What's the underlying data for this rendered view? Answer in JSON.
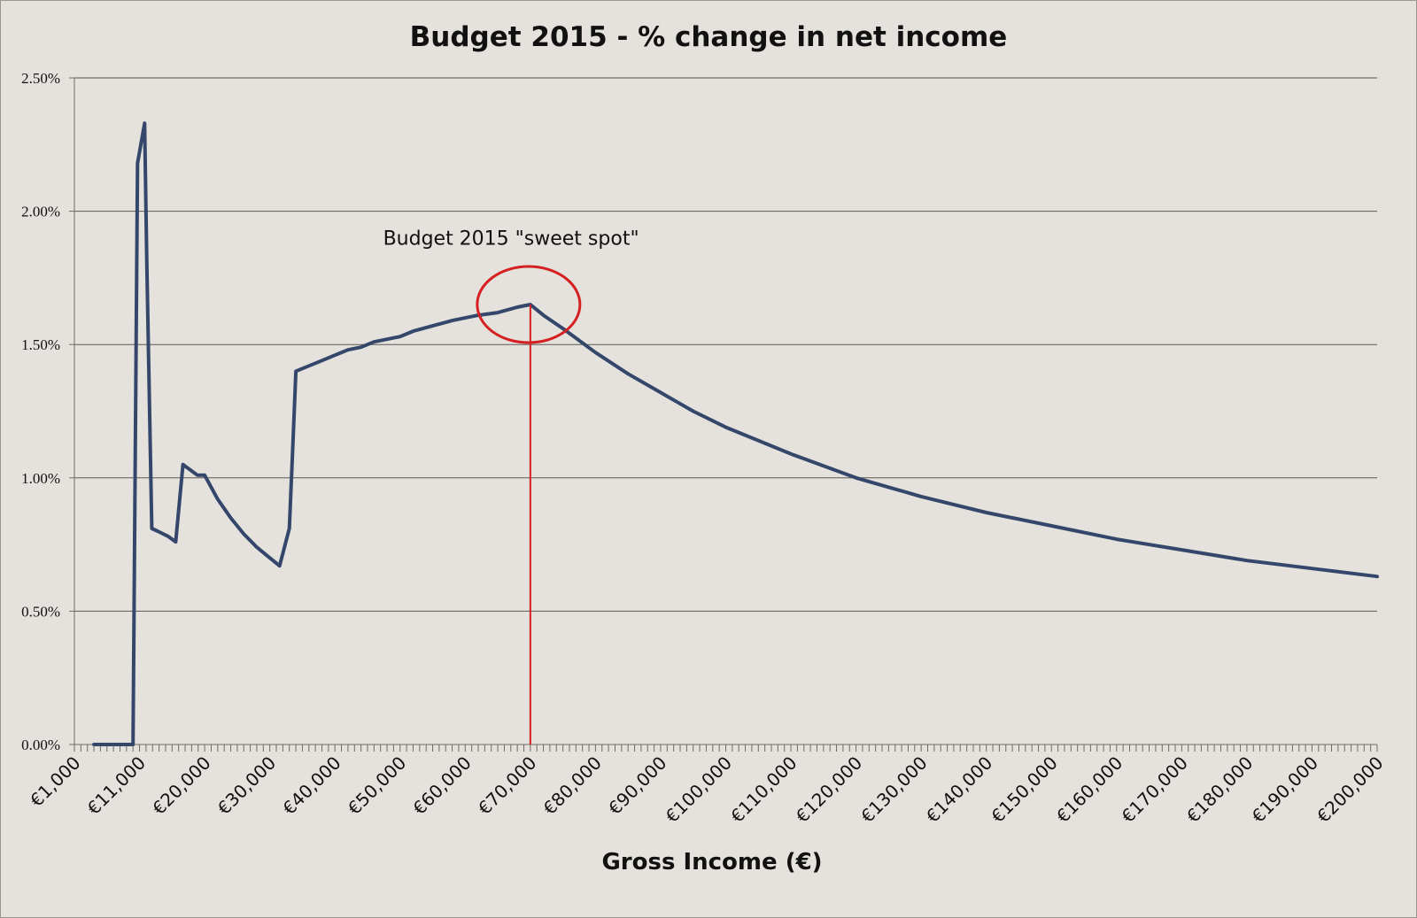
{
  "chart_data": {
    "type": "line",
    "title": "Budget 2015 - % change in net income",
    "xlabel": "Gross Income (€)",
    "ylabel": "",
    "ylim": [
      0,
      0.025
    ],
    "yticks": [
      0,
      0.005,
      0.01,
      0.015,
      0.02,
      0.025
    ],
    "ytick_labels": [
      "0.00%",
      "0.50%",
      "1.00%",
      "1.50%",
      "2.00%",
      "2.50%"
    ],
    "xlim": [
      1000,
      200000
    ],
    "xticks": [
      1000,
      11000,
      20000,
      30000,
      40000,
      50000,
      60000,
      70000,
      80000,
      90000,
      100000,
      110000,
      120000,
      130000,
      140000,
      150000,
      160000,
      170000,
      180000,
      190000,
      200000
    ],
    "xtick_labels": [
      "€1,000",
      "€11,000",
      "€20,000",
      "€30,000",
      "€40,000",
      "€50,000",
      "€60,000",
      "€70,000",
      "€80,000",
      "€90,000",
      "€100,000",
      "€110,000",
      "€120,000",
      "€130,000",
      "€140,000",
      "€150,000",
      "€160,000",
      "€170,000",
      "€180,000",
      "€190,000",
      "€200,000"
    ],
    "grid": true,
    "series": [
      {
        "name": "% change in net income",
        "color": "#34476b",
        "x": [
          4000,
          6000,
          8000,
          10000,
          10700,
          11700,
          12000,
          12700,
          13500,
          15000,
          16000,
          17000,
          17500,
          18000,
          19000,
          20000,
          22000,
          24000,
          26000,
          28000,
          30000,
          31500,
          33000,
          33500,
          34000,
          36000,
          38000,
          40000,
          42000,
          44000,
          46000,
          48000,
          50000,
          52000,
          55000,
          58000,
          60000,
          62000,
          65000,
          68000,
          70000,
          72000,
          75000,
          80000,
          85000,
          90000,
          95000,
          100000,
          110000,
          120000,
          130000,
          140000,
          150000,
          160000,
          170000,
          180000,
          190000,
          200000
        ],
        "y": [
          0,
          0,
          0,
          0,
          0.0218,
          0.0233,
          0.0182,
          0.0081,
          0.008,
          0.0078,
          0.0076,
          0.0105,
          0.0104,
          0.0103,
          0.0101,
          0.0101,
          0.0092,
          0.0085,
          0.0079,
          0.0074,
          0.007,
          0.0067,
          0.0081,
          0.011,
          0.014,
          0.0142,
          0.0144,
          0.0146,
          0.0148,
          0.0149,
          0.0151,
          0.0152,
          0.0153,
          0.0155,
          0.0157,
          0.0159,
          0.016,
          0.0161,
          0.0162,
          0.0164,
          0.0165,
          0.0161,
          0.0156,
          0.0147,
          0.0139,
          0.0132,
          0.0125,
          0.0119,
          0.0109,
          0.01,
          0.0093,
          0.0087,
          0.0082,
          0.0077,
          0.0073,
          0.0069,
          0.0066,
          0.0063
        ]
      }
    ],
    "annotations": [
      {
        "type": "ellipse",
        "x": 70000,
        "y": 0.0165,
        "label": ""
      },
      {
        "type": "text",
        "text": "Budget 2015 \"sweet spot\"",
        "x": 65000,
        "y": 0.019
      },
      {
        "type": "vline",
        "x": 70000,
        "from": 0,
        "to": 0.0165,
        "color": "#d42020"
      }
    ],
    "colors": {
      "line": "#34476b",
      "annotation": "#d42020",
      "grid": "#5c5853",
      "axis": "#6e6a66"
    }
  }
}
